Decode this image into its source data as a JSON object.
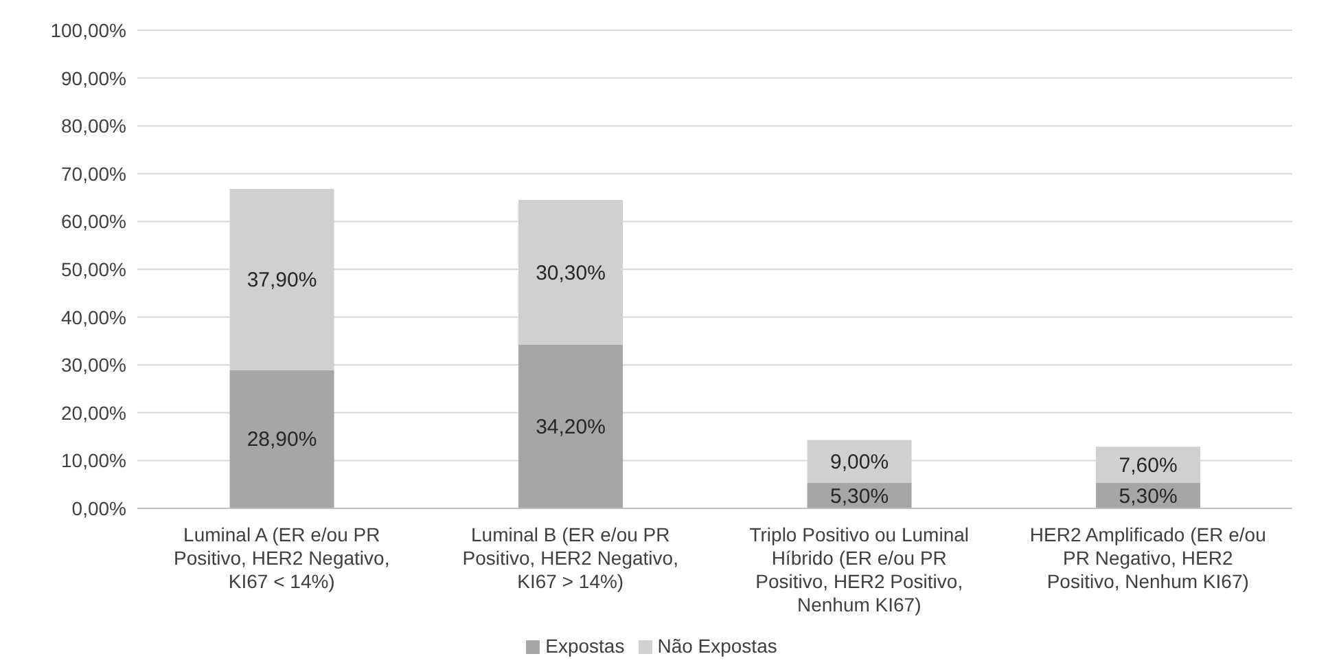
{
  "chart_data": {
    "type": "bar",
    "stacked": true,
    "categories": [
      "Luminal A (ER e/ou PR Positivo, HER2 Negativo, KI67 < 14%)",
      "Luminal B (ER e/ou PR Positivo, HER2 Negativo, KI67 > 14%)",
      "Triplo Positivo ou Luminal Híbrido (ER e/ou PR Positivo, HER2 Positivo, Nenhum KI67)",
      "HER2 Amplificado (ER e/ou PR Negativo, HER2 Positivo, Nenhum KI67)"
    ],
    "series": [
      {
        "name": "Expostas",
        "color": "#a6a6a6",
        "values": [
          28.9,
          34.2,
          5.3,
          5.3
        ],
        "value_labels": [
          "28,90%",
          "34,20%",
          "5,30%",
          "5,30%"
        ]
      },
      {
        "name": "Não Expostas",
        "color": "#d0d0d0",
        "values": [
          37.9,
          30.3,
          9.0,
          7.6
        ],
        "value_labels": [
          "37,90%",
          "30,30%",
          "9,00%",
          "7,60%"
        ]
      }
    ],
    "ylim": [
      0,
      100
    ],
    "yticks": [
      {
        "value": 0,
        "label": "0,00%"
      },
      {
        "value": 10,
        "label": "10,00%"
      },
      {
        "value": 20,
        "label": "20,00%"
      },
      {
        "value": 30,
        "label": "30,00%"
      },
      {
        "value": 40,
        "label": "40,00%"
      },
      {
        "value": 50,
        "label": "50,00%"
      },
      {
        "value": 60,
        "label": "60,00%"
      },
      {
        "value": 70,
        "label": "70,00%"
      },
      {
        "value": 80,
        "label": "80,00%"
      },
      {
        "value": 90,
        "label": "90,00%"
      },
      {
        "value": 100,
        "label": "100,00%"
      }
    ],
    "grid": "y",
    "legend": "bottom"
  }
}
